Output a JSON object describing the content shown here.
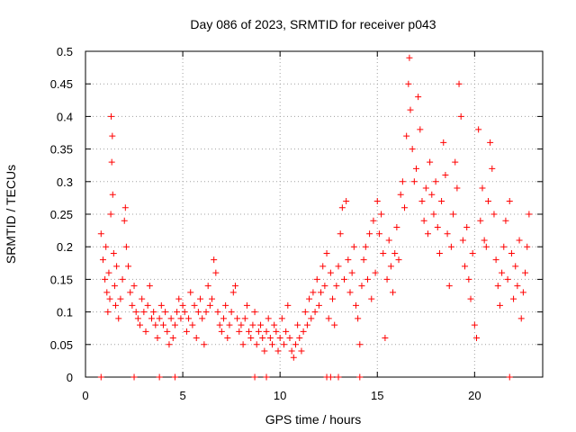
{
  "chart_data": {
    "type": "scatter",
    "title": "Day 086 of 2023, SRMTID for receiver p043",
    "xlabel": "GPS time / hours",
    "ylabel": "SRMTID / TECUs",
    "xlim": [
      0,
      23.5
    ],
    "ylim": [
      0,
      0.5
    ],
    "xticks": [
      0,
      5,
      10,
      15,
      20
    ],
    "xtick_labels": [
      "0",
      "5",
      "10",
      "15",
      "20"
    ],
    "yticks": [
      0,
      0.05,
      0.1,
      0.15,
      0.2,
      0.25,
      0.3,
      0.35,
      0.4,
      0.45,
      0.5
    ],
    "ytick_labels": [
      "0",
      "0.05",
      "0.1",
      "0.15",
      "0.2",
      "0.25",
      "0.3",
      "0.35",
      "0.4",
      "0.45",
      "0.5"
    ],
    "grid": true,
    "marker": "+",
    "marker_color": "#ff0000",
    "series": [
      {
        "name": "SRMTID",
        "points": [
          [
            0.8,
            0.22
          ],
          [
            0.9,
            0.18
          ],
          [
            1.0,
            0.15
          ],
          [
            1.05,
            0.2
          ],
          [
            1.1,
            0.13
          ],
          [
            1.15,
            0.1
          ],
          [
            1.2,
            0.16
          ],
          [
            1.25,
            0.12
          ],
          [
            1.3,
            0.25
          ],
          [
            1.32,
            0.4
          ],
          [
            1.35,
            0.33
          ],
          [
            1.38,
            0.37
          ],
          [
            1.4,
            0.28
          ],
          [
            1.45,
            0.19
          ],
          [
            1.5,
            0.14
          ],
          [
            1.55,
            0.11
          ],
          [
            1.6,
            0.17
          ],
          [
            1.7,
            0.09
          ],
          [
            1.8,
            0.12
          ],
          [
            1.9,
            0.15
          ],
          [
            2.0,
            0.24
          ],
          [
            2.05,
            0.26
          ],
          [
            2.1,
            0.2
          ],
          [
            2.2,
            0.17
          ],
          [
            2.3,
            0.13
          ],
          [
            2.4,
            0.11
          ],
          [
            2.5,
            0.14
          ],
          [
            2.6,
            0.1
          ],
          [
            2.7,
            0.09
          ],
          [
            2.8,
            0.08
          ],
          [
            2.9,
            0.12
          ],
          [
            3.0,
            0.1
          ],
          [
            3.1,
            0.07
          ],
          [
            3.2,
            0.11
          ],
          [
            3.3,
            0.14
          ],
          [
            3.4,
            0.09
          ],
          [
            3.5,
            0.1
          ],
          [
            3.6,
            0.08
          ],
          [
            3.7,
            0.06
          ],
          [
            3.8,
            0.09
          ],
          [
            3.9,
            0.11
          ],
          [
            4.0,
            0.08
          ],
          [
            4.1,
            0.1
          ],
          [
            4.2,
            0.07
          ],
          [
            4.3,
            0.05
          ],
          [
            4.4,
            0.09
          ],
          [
            4.5,
            0.06
          ],
          [
            4.6,
            0.08
          ],
          [
            4.7,
            0.1
          ],
          [
            4.8,
            0.12
          ],
          [
            4.9,
            0.09
          ],
          [
            5.0,
            0.11
          ],
          [
            5.1,
            0.1
          ],
          [
            5.2,
            0.07
          ],
          [
            5.3,
            0.09
          ],
          [
            5.4,
            0.13
          ],
          [
            5.5,
            0.08
          ],
          [
            5.6,
            0.11
          ],
          [
            5.7,
            0.06
          ],
          [
            5.8,
            0.1
          ],
          [
            5.9,
            0.12
          ],
          [
            6.0,
            0.09
          ],
          [
            6.1,
            0.05
          ],
          [
            6.2,
            0.1
          ],
          [
            6.3,
            0.14
          ],
          [
            6.4,
            0.11
          ],
          [
            6.5,
            0.12
          ],
          [
            6.6,
            0.18
          ],
          [
            6.7,
            0.16
          ],
          [
            6.8,
            0.1
          ],
          [
            6.9,
            0.08
          ],
          [
            7.0,
            0.07
          ],
          [
            7.1,
            0.09
          ],
          [
            7.2,
            0.11
          ],
          [
            7.3,
            0.06
          ],
          [
            7.4,
            0.08
          ],
          [
            7.5,
            0.1
          ],
          [
            7.6,
            0.13
          ],
          [
            7.7,
            0.14
          ],
          [
            7.8,
            0.09
          ],
          [
            7.9,
            0.07
          ],
          [
            8.0,
            0.08
          ],
          [
            8.1,
            0.05
          ],
          [
            8.2,
            0.09
          ],
          [
            8.3,
            0.11
          ],
          [
            8.4,
            0.07
          ],
          [
            8.5,
            0.06
          ],
          [
            8.6,
            0.08
          ],
          [
            8.7,
            0.1
          ],
          [
            8.8,
            0.05
          ],
          [
            8.9,
            0.07
          ],
          [
            9.0,
            0.08
          ],
          [
            9.1,
            0.06
          ],
          [
            9.2,
            0.04
          ],
          [
            9.3,
            0.07
          ],
          [
            9.4,
            0.09
          ],
          [
            9.5,
            0.06
          ],
          [
            9.6,
            0.05
          ],
          [
            9.7,
            0.08
          ],
          [
            9.8,
            0.07
          ],
          [
            9.9,
            0.04
          ],
          [
            10.0,
            0.06
          ],
          [
            10.1,
            0.09
          ],
          [
            10.2,
            0.05
          ],
          [
            10.3,
            0.07
          ],
          [
            10.4,
            0.11
          ],
          [
            10.5,
            0.06
          ],
          [
            10.6,
            0.04
          ],
          [
            10.7,
            0.03
          ],
          [
            10.8,
            0.05
          ],
          [
            10.9,
            0.08
          ],
          [
            11.0,
            0.06
          ],
          [
            11.1,
            0.04
          ],
          [
            11.2,
            0.07
          ],
          [
            11.3,
            0.1
          ],
          [
            11.4,
            0.08
          ],
          [
            11.5,
            0.12
          ],
          [
            11.6,
            0.09
          ],
          [
            11.7,
            0.13
          ],
          [
            11.8,
            0.1
          ],
          [
            11.9,
            0.15
          ],
          [
            12.0,
            0.11
          ],
          [
            12.1,
            0.13
          ],
          [
            12.2,
            0.17
          ],
          [
            12.3,
            0.14
          ],
          [
            12.4,
            0.19
          ],
          [
            12.5,
            0.09
          ],
          [
            12.6,
            0.16
          ],
          [
            12.7,
            0.12
          ],
          [
            12.8,
            0.08
          ],
          [
            12.9,
            0.14
          ],
          [
            13.0,
            0.17
          ],
          [
            13.1,
            0.22
          ],
          [
            13.2,
            0.26
          ],
          [
            13.3,
            0.15
          ],
          [
            13.4,
            0.27
          ],
          [
            13.5,
            0.18
          ],
          [
            13.6,
            0.13
          ],
          [
            13.7,
            0.16
          ],
          [
            13.8,
            0.2
          ],
          [
            13.9,
            0.11
          ],
          [
            14.0,
            0.09
          ],
          [
            14.1,
            0.05
          ],
          [
            14.2,
            0.14
          ],
          [
            14.3,
            0.18
          ],
          [
            14.4,
            0.2
          ],
          [
            14.5,
            0.15
          ],
          [
            14.6,
            0.22
          ],
          [
            14.7,
            0.12
          ],
          [
            14.8,
            0.24
          ],
          [
            14.9,
            0.16
          ],
          [
            15.0,
            0.27
          ],
          [
            15.1,
            0.22
          ],
          [
            15.2,
            0.25
          ],
          [
            15.3,
            0.19
          ],
          [
            15.4,
            0.06
          ],
          [
            15.5,
            0.15
          ],
          [
            15.6,
            0.21
          ],
          [
            15.7,
            0.17
          ],
          [
            15.8,
            0.13
          ],
          [
            15.9,
            0.19
          ],
          [
            16.0,
            0.23
          ],
          [
            16.1,
            0.18
          ],
          [
            16.2,
            0.28
          ],
          [
            16.3,
            0.3
          ],
          [
            16.4,
            0.26
          ],
          [
            16.5,
            0.37
          ],
          [
            16.6,
            0.45
          ],
          [
            16.65,
            0.49
          ],
          [
            16.7,
            0.41
          ],
          [
            16.8,
            0.35
          ],
          [
            16.9,
            0.3
          ],
          [
            17.0,
            0.32
          ],
          [
            17.1,
            0.43
          ],
          [
            17.2,
            0.38
          ],
          [
            17.3,
            0.27
          ],
          [
            17.4,
            0.24
          ],
          [
            17.5,
            0.29
          ],
          [
            17.6,
            0.22
          ],
          [
            17.7,
            0.33
          ],
          [
            17.8,
            0.28
          ],
          [
            17.9,
            0.25
          ],
          [
            18.0,
            0.3
          ],
          [
            18.1,
            0.23
          ],
          [
            18.2,
            0.19
          ],
          [
            18.3,
            0.27
          ],
          [
            18.4,
            0.36
          ],
          [
            18.5,
            0.31
          ],
          [
            18.6,
            0.22
          ],
          [
            18.7,
            0.14
          ],
          [
            18.8,
            0.2
          ],
          [
            18.9,
            0.25
          ],
          [
            19.0,
            0.33
          ],
          [
            19.1,
            0.29
          ],
          [
            19.2,
            0.45
          ],
          [
            19.3,
            0.4
          ],
          [
            19.4,
            0.21
          ],
          [
            19.5,
            0.17
          ],
          [
            19.6,
            0.23
          ],
          [
            19.7,
            0.15
          ],
          [
            19.8,
            0.12
          ],
          [
            19.9,
            0.19
          ],
          [
            20.0,
            0.08
          ],
          [
            20.1,
            0.06
          ],
          [
            20.2,
            0.38
          ],
          [
            20.3,
            0.24
          ],
          [
            20.4,
            0.29
          ],
          [
            20.5,
            0.21
          ],
          [
            20.6,
            0.2
          ],
          [
            20.7,
            0.27
          ],
          [
            20.8,
            0.36
          ],
          [
            20.9,
            0.32
          ],
          [
            21.0,
            0.25
          ],
          [
            21.1,
            0.18
          ],
          [
            21.2,
            0.14
          ],
          [
            21.3,
            0.11
          ],
          [
            21.4,
            0.16
          ],
          [
            21.5,
            0.2
          ],
          [
            21.6,
            0.24
          ],
          [
            21.7,
            0.15
          ],
          [
            21.8,
            0.27
          ],
          [
            21.9,
            0.19
          ],
          [
            22.0,
            0.12
          ],
          [
            22.1,
            0.17
          ],
          [
            22.2,
            0.14
          ],
          [
            22.3,
            0.21
          ],
          [
            22.4,
            0.09
          ],
          [
            22.5,
            0.13
          ],
          [
            22.6,
            0.16
          ],
          [
            22.7,
            0.2
          ],
          [
            22.8,
            0.25
          ],
          [
            0.8,
            0.0
          ],
          [
            2.5,
            0.0
          ],
          [
            3.8,
            0.0
          ],
          [
            4.6,
            0.0
          ],
          [
            8.7,
            0.0
          ],
          [
            9.3,
            0.0
          ],
          [
            12.4,
            0.0
          ],
          [
            12.6,
            0.0
          ],
          [
            13.0,
            0.0
          ],
          [
            14.1,
            0.0
          ],
          [
            21.8,
            0.0
          ]
        ]
      }
    ]
  }
}
